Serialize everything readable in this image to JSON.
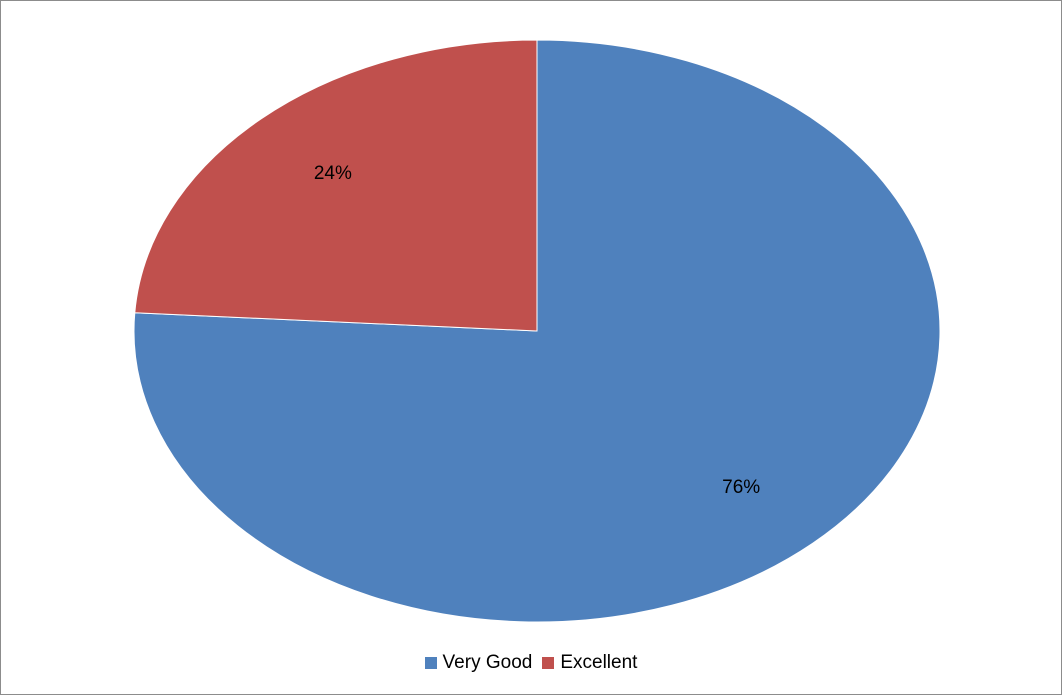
{
  "chart_data": {
    "type": "pie",
    "title": "",
    "slices": [
      {
        "label": "Very Good",
        "value": 76,
        "display": "76%",
        "color": "#4F81BD"
      },
      {
        "label": "Excellent",
        "value": 24,
        "display": "24%",
        "color": "#C0504D"
      }
    ],
    "legend_position": "bottom",
    "start_angle_deg": 0,
    "direction": "clockwise"
  }
}
